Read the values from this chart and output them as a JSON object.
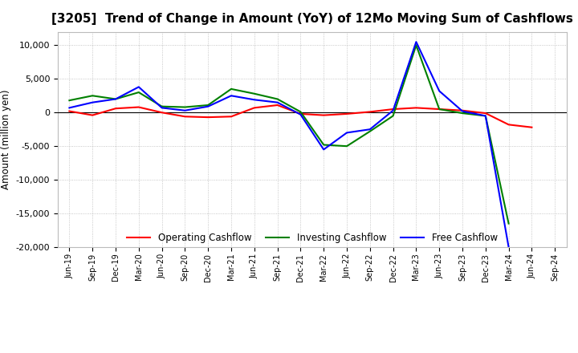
{
  "title": "[3205]  Trend of Change in Amount (YoY) of 12Mo Moving Sum of Cashflows",
  "ylabel": "Amount (million yen)",
  "x_labels": [
    "Jun-19",
    "Sep-19",
    "Dec-19",
    "Mar-20",
    "Jun-20",
    "Sep-20",
    "Dec-20",
    "Mar-21",
    "Jun-21",
    "Sep-21",
    "Dec-21",
    "Mar-22",
    "Jun-22",
    "Sep-22",
    "Dec-22",
    "Mar-23",
    "Jun-23",
    "Sep-23",
    "Dec-23",
    "Mar-24",
    "Jun-24",
    "Sep-24"
  ],
  "operating": [
    200,
    -400,
    600,
    800,
    0,
    -600,
    -700,
    -600,
    700,
    1100,
    -200,
    -400,
    -200,
    100,
    500,
    700,
    500,
    300,
    -100,
    -1800,
    -2200,
    null
  ],
  "investing": [
    1800,
    2500,
    2000,
    3000,
    900,
    800,
    1100,
    3500,
    2800,
    2000,
    100,
    -4800,
    -5000,
    -2800,
    -500,
    10000,
    500,
    -100,
    -500,
    -16500,
    null,
    null
  ],
  "free": [
    700,
    1500,
    2000,
    3800,
    700,
    300,
    900,
    2500,
    1900,
    1500,
    -300,
    -5500,
    -3000,
    -2500,
    300,
    10500,
    3200,
    200,
    -500,
    -20000,
    null,
    null
  ],
  "ylim": [
    -20000,
    12000
  ],
  "yticks": [
    -20000,
    -15000,
    -10000,
    -5000,
    0,
    5000,
    10000
  ],
  "operating_color": "#ff0000",
  "investing_color": "#008000",
  "free_color": "#0000ff",
  "bg_color": "#ffffff",
  "grid_color": "#999999",
  "title_fontsize": 11,
  "legend_labels": [
    "Operating Cashflow",
    "Investing Cashflow",
    "Free Cashflow"
  ],
  "linewidth": 1.5
}
